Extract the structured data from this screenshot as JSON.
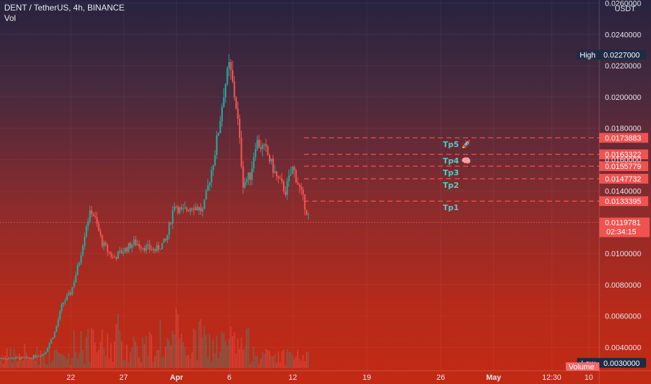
{
  "legend": {
    "symbol": "DENT / TetherUS, 4h, BINANCE",
    "volume_label": "Vol"
  },
  "chart_data": {
    "type": "candlestick",
    "currency": "USDT",
    "y_ticks": [
      0.004,
      0.006,
      0.008,
      0.01,
      0.012,
      0.014,
      0.016,
      0.018,
      0.02,
      0.022,
      0.024,
      0.026
    ],
    "y_tick_labels": [
      "0.0040000",
      "0.0060000",
      "0.0080000",
      "0.0100000",
      "0.0120000",
      "0.0140000",
      "0.0160000",
      "0.0180000",
      "0.0200000",
      "0.0220000",
      "0.0240000",
      "0.0260000"
    ],
    "ylim": [
      0.0025,
      0.0262
    ],
    "x_ticks": [
      "22",
      "27",
      "Apr",
      "6",
      "12",
      "19",
      "26",
      "May",
      "12:30",
      "10"
    ],
    "x_tick_days": [
      22,
      27,
      32,
      37,
      43,
      50,
      57,
      62,
      67.5,
      71
    ],
    "xlim": [
      15.3,
      72
    ],
    "high": {
      "label": "High",
      "value": "0.0227000",
      "y": 0.0227
    },
    "low": {
      "label": "Low",
      "value": "0.0030000",
      "y": 0.003
    },
    "last_price": {
      "value": "0.0119781",
      "countdown": "02:34:15",
      "y": 0.0119781
    },
    "volume_tag": "Volume",
    "targets": [
      {
        "name": "Tp1",
        "icon": "",
        "level": "0.0133395",
        "y": 0.0133395
      },
      {
        "name": "Tp2",
        "icon": "",
        "level": "0.0147732",
        "y": 0.0147732
      },
      {
        "name": "Tp3",
        "icon": "",
        "level": "0.0155779",
        "y": 0.0155779
      },
      {
        "name": "Tp4",
        "icon": "🧠",
        "level": "0.0163322",
        "y": 0.0163322
      },
      {
        "name": "Tp5",
        "icon": "🚀",
        "level": "0.0173883",
        "y": 0.0173883
      }
    ],
    "price_path": [
      [
        15.3,
        0.0033
      ],
      [
        18.0,
        0.0033
      ],
      [
        19.5,
        0.0036
      ],
      [
        20.5,
        0.005
      ],
      [
        21.2,
        0.0068
      ],
      [
        22.0,
        0.0075
      ],
      [
        22.8,
        0.0095
      ],
      [
        23.5,
        0.012
      ],
      [
        24.0,
        0.0128
      ],
      [
        25.0,
        0.0106
      ],
      [
        26.0,
        0.0097
      ],
      [
        27.0,
        0.0102
      ],
      [
        28.0,
        0.0107
      ],
      [
        29.0,
        0.0104
      ],
      [
        30.0,
        0.0102
      ],
      [
        31.0,
        0.0108
      ],
      [
        31.8,
        0.0132
      ],
      [
        32.5,
        0.0126
      ],
      [
        33.5,
        0.0131
      ],
      [
        34.5,
        0.0127
      ],
      [
        35.5,
        0.016
      ],
      [
        36.0,
        0.018
      ],
      [
        36.5,
        0.0205
      ],
      [
        37.0,
        0.022
      ],
      [
        37.7,
        0.0192
      ],
      [
        38.3,
        0.0145
      ],
      [
        39.0,
        0.015
      ],
      [
        39.5,
        0.0172
      ],
      [
        40.5,
        0.0165
      ],
      [
        41.5,
        0.0148
      ],
      [
        42.3,
        0.014
      ],
      [
        43.0,
        0.0155
      ],
      [
        43.8,
        0.0138
      ],
      [
        44.6,
        0.0121
      ]
    ]
  }
}
